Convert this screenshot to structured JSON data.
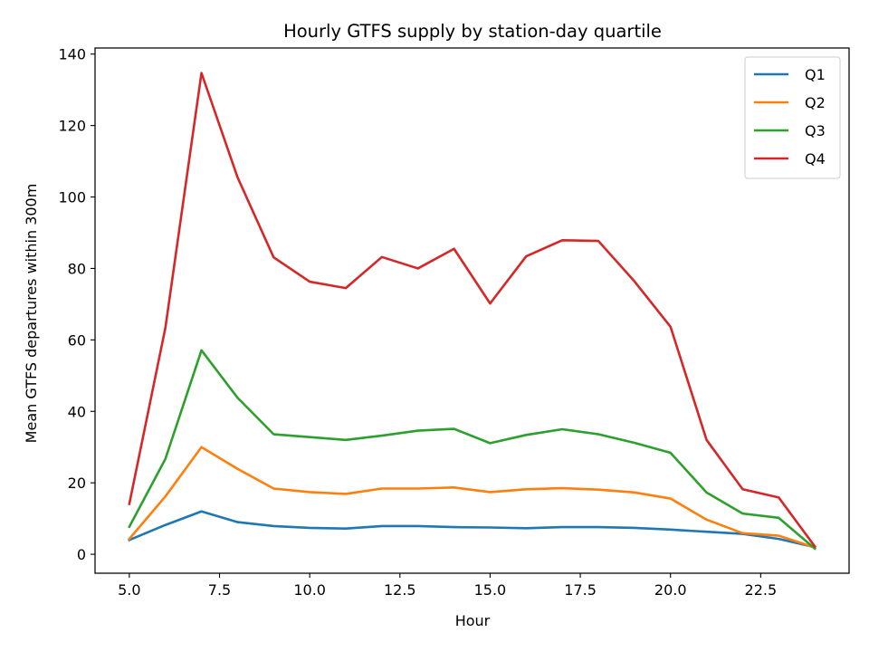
{
  "chart_data": {
    "type": "line",
    "title": "Hourly GTFS supply by station-day quartile",
    "xlabel": "Hour",
    "ylabel": "Mean GTFS departures within 300m",
    "xlim": [
      4.05,
      24.95
    ],
    "ylim": [
      -5.3,
      141.7
    ],
    "x_ticks": [
      5.0,
      7.5,
      10.0,
      12.5,
      15.0,
      17.5,
      20.0,
      22.5
    ],
    "x_tick_labels": [
      "5.0",
      "7.5",
      "10.0",
      "12.5",
      "15.0",
      "17.5",
      "20.0",
      "22.5"
    ],
    "y_ticks": [
      0,
      20,
      40,
      60,
      80,
      100,
      120,
      140
    ],
    "y_tick_labels": [
      "0",
      "20",
      "40",
      "60",
      "80",
      "100",
      "120",
      "140"
    ],
    "grid": false,
    "legend_position": "top-right",
    "x": [
      5,
      6,
      7,
      8,
      9,
      10,
      11,
      12,
      13,
      14,
      15,
      16,
      17,
      18,
      19,
      20,
      21,
      22,
      23,
      24
    ],
    "series": [
      {
        "name": "Q1",
        "color": "#1f77b4",
        "values": [
          4.0,
          8.2,
          12.0,
          9.0,
          7.9,
          7.4,
          7.2,
          7.9,
          7.9,
          7.6,
          7.5,
          7.3,
          7.6,
          7.6,
          7.4,
          6.9,
          6.3,
          5.7,
          4.3,
          2.0
        ]
      },
      {
        "name": "Q2",
        "color": "#ff7f0e",
        "values": [
          4.3,
          16.2,
          30.0,
          23.9,
          18.4,
          17.4,
          16.9,
          18.4,
          18.4,
          18.7,
          17.4,
          18.2,
          18.5,
          18.1,
          17.3,
          15.6,
          9.7,
          5.9,
          5.2,
          1.9
        ]
      },
      {
        "name": "Q3",
        "color": "#2ca02c",
        "values": [
          7.7,
          26.7,
          57.1,
          43.8,
          33.6,
          32.8,
          32.0,
          33.2,
          34.6,
          35.1,
          31.1,
          33.4,
          35.0,
          33.6,
          31.2,
          28.4,
          17.3,
          11.4,
          10.2,
          1.6
        ]
      },
      {
        "name": "Q4",
        "color": "#d62728",
        "values": [
          14.1,
          63.4,
          134.7,
          105.5,
          83.1,
          76.3,
          74.5,
          83.2,
          80.0,
          85.5,
          70.2,
          83.4,
          87.9,
          87.7,
          76.4,
          63.7,
          32.0,
          18.2,
          15.9,
          2.2
        ]
      }
    ]
  }
}
